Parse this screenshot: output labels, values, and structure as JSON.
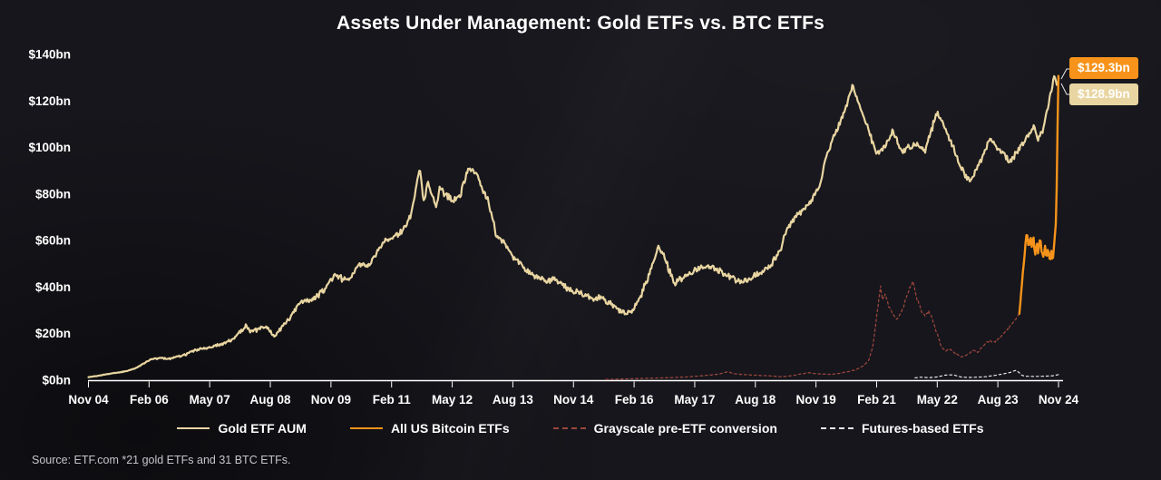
{
  "source": "Source: ETF.com *21 gold ETFs and 31 BTC ETFs.",
  "annotations": {
    "btc_badge": "$129.3bn",
    "gold_badge": "$128.9bn"
  },
  "colors": {
    "background": "#16161c",
    "gold": "#e9d5a1",
    "bitcoin": "#f7931a",
    "grayscale": "#9a453c",
    "futures": "#e8e8ea",
    "axis": "#ffffff",
    "text": "#ffffff"
  },
  "legend": {
    "items": [
      {
        "label": "Gold ETF AUM",
        "color_key": "gold",
        "style": "solid"
      },
      {
        "label": "All US Bitcoin ETFs",
        "color_key": "bitcoin",
        "style": "solid"
      },
      {
        "label": "Grayscale pre-ETF conversion",
        "color_key": "grayscale",
        "style": "dashed"
      },
      {
        "label": "Futures-based ETFs",
        "color_key": "futures",
        "style": "dashed"
      }
    ]
  },
  "chart_data": {
    "type": "line",
    "title": "Assets Under Management: Gold ETFs vs. BTC ETFs",
    "xlabel": "",
    "ylabel": "",
    "x_unit": "months since Nov 2004",
    "ylim": [
      0,
      140
    ],
    "grid": false,
    "legend_position": "bottom",
    "y_tick_format": "$bn",
    "y_ticks": [
      0,
      20,
      40,
      60,
      80,
      100,
      120,
      140
    ],
    "y_tick_labels": [
      "$0bn",
      "$20bn",
      "$40bn",
      "$60bn",
      "$80bn",
      "$100bn",
      "$120bn",
      "$140bn"
    ],
    "x_tick_months": [
      0,
      15,
      30,
      45,
      60,
      75,
      90,
      105,
      120,
      135,
      150,
      165,
      180,
      195,
      210,
      225,
      240
    ],
    "x_tick_labels": [
      "Nov 04",
      "Feb 06",
      "May 07",
      "Aug 08",
      "Nov 09",
      "Feb 11",
      "May 12",
      "Aug 13",
      "Nov 14",
      "Feb 16",
      "May 17",
      "Aug 18",
      "Nov 19",
      "Feb 21",
      "May 22",
      "Aug 23",
      "Nov 24"
    ],
    "series": [
      {
        "name": "Futures-based ETFs",
        "color_key": "futures",
        "style": "dashed",
        "width": 1.2,
        "jitter": 0.2,
        "end_value_bn": 2.4,
        "points": [
          [
            204.5,
            1.0
          ],
          [
            206,
            1.3
          ],
          [
            208,
            1.1
          ],
          [
            210,
            1.4
          ],
          [
            212,
            2.2
          ],
          [
            214,
            2.3
          ],
          [
            216,
            1.3
          ],
          [
            218,
            1.2
          ],
          [
            220,
            1.3
          ],
          [
            222,
            1.5
          ],
          [
            224,
            2.0
          ],
          [
            226,
            2.6
          ],
          [
            228,
            3.3
          ],
          [
            229.5,
            4.3
          ],
          [
            230.3,
            3.2
          ],
          [
            231,
            2.0
          ],
          [
            232,
            1.7
          ],
          [
            234,
            1.6
          ],
          [
            236,
            1.7
          ],
          [
            238,
            1.8
          ],
          [
            239,
            2.0
          ],
          [
            240,
            2.4
          ]
        ]
      },
      {
        "name": "Grayscale pre-ETF conversion",
        "color_key": "grayscale",
        "style": "dashed",
        "width": 1.3,
        "jitter": 0.9,
        "end_value_bn": 28.5,
        "points": [
          [
            128,
            0.3
          ],
          [
            132,
            0.5
          ],
          [
            136,
            0.7
          ],
          [
            140,
            0.9
          ],
          [
            144,
            1.1
          ],
          [
            148,
            1.4
          ],
          [
            152,
            1.9
          ],
          [
            156,
            2.6
          ],
          [
            158,
            3.6
          ],
          [
            160,
            2.7
          ],
          [
            164,
            2.2
          ],
          [
            168,
            1.9
          ],
          [
            172,
            1.5
          ],
          [
            174,
            1.9
          ],
          [
            178,
            3.2
          ],
          [
            180,
            2.8
          ],
          [
            184,
            2.5
          ],
          [
            186,
            3.0
          ],
          [
            188,
            3.7
          ],
          [
            190,
            4.6
          ],
          [
            192,
            6.5
          ],
          [
            193,
            8.5
          ],
          [
            194,
            14
          ],
          [
            195,
            27
          ],
          [
            196,
            40.5
          ],
          [
            196.5,
            34
          ],
          [
            197,
            37
          ],
          [
            198,
            32
          ],
          [
            199,
            28
          ],
          [
            200,
            26
          ],
          [
            201,
            29
          ],
          [
            202,
            33.5
          ],
          [
            203,
            38.5
          ],
          [
            204,
            42.5
          ],
          [
            204.5,
            38
          ],
          [
            205,
            35.5
          ],
          [
            206,
            30
          ],
          [
            207,
            27.5
          ],
          [
            208,
            29.5
          ],
          [
            209,
            25
          ],
          [
            210,
            20
          ],
          [
            211,
            14.5
          ],
          [
            212,
            12.5
          ],
          [
            213,
            13.5
          ],
          [
            214,
            12
          ],
          [
            215,
            11
          ],
          [
            216,
            10
          ],
          [
            217,
            10.5
          ],
          [
            218,
            11.5
          ],
          [
            219,
            13
          ],
          [
            220,
            12
          ],
          [
            221,
            14
          ],
          [
            222,
            16
          ],
          [
            223,
            17
          ],
          [
            224,
            16
          ],
          [
            225,
            17.5
          ],
          [
            226,
            19
          ],
          [
            227,
            21
          ],
          [
            228,
            23
          ],
          [
            229,
            25.5
          ],
          [
            230.3,
            28.5
          ]
        ]
      },
      {
        "name": "Gold ETF AUM",
        "color_key": "gold",
        "style": "solid",
        "width": 2.2,
        "jitter": 1.3,
        "end_value_bn": 128.9,
        "points": [
          [
            0,
            1.3
          ],
          [
            2,
            1.8
          ],
          [
            4,
            2.4
          ],
          [
            6,
            3.0
          ],
          [
            8,
            3.4
          ],
          [
            10,
            4.2
          ],
          [
            12,
            5.5
          ],
          [
            14,
            7.5
          ],
          [
            16,
            9.2
          ],
          [
            18,
            9.6
          ],
          [
            20,
            9.2
          ],
          [
            22,
            10
          ],
          [
            24,
            11
          ],
          [
            26,
            12.5
          ],
          [
            28,
            13.5
          ],
          [
            30,
            14.2
          ],
          [
            32,
            15
          ],
          [
            34,
            16
          ],
          [
            36,
            18
          ],
          [
            38,
            21.5
          ],
          [
            39,
            23.5
          ],
          [
            40,
            20.5
          ],
          [
            42,
            22
          ],
          [
            44,
            23
          ],
          [
            46,
            18.5
          ],
          [
            48,
            23
          ],
          [
            50,
            27
          ],
          [
            52,
            33
          ],
          [
            54,
            34
          ],
          [
            56,
            35
          ],
          [
            58,
            38
          ],
          [
            60,
            43
          ],
          [
            61,
            45
          ],
          [
            63,
            43.5
          ],
          [
            65,
            44.5
          ],
          [
            67,
            50
          ],
          [
            69,
            49
          ],
          [
            71,
            54
          ],
          [
            73,
            59
          ],
          [
            75,
            61
          ],
          [
            77,
            63
          ],
          [
            79,
            68
          ],
          [
            80,
            72
          ],
          [
            81,
            82
          ],
          [
            82,
            90.5
          ],
          [
            83,
            76
          ],
          [
            84,
            85
          ],
          [
            86,
            74.5
          ],
          [
            87,
            84
          ],
          [
            88,
            80
          ],
          [
            90,
            77.5
          ],
          [
            92,
            79.5
          ],
          [
            94,
            91
          ],
          [
            96,
            89
          ],
          [
            98,
            80
          ],
          [
            99,
            77
          ],
          [
            100,
            70
          ],
          [
            101,
            61.5
          ],
          [
            103,
            59
          ],
          [
            105,
            53.5
          ],
          [
            107,
            50
          ],
          [
            109,
            46.5
          ],
          [
            111,
            44.5
          ],
          [
            113,
            42.5
          ],
          [
            115,
            43.5
          ],
          [
            117,
            41.5
          ],
          [
            119,
            38.5
          ],
          [
            121,
            37.5
          ],
          [
            123,
            36.5
          ],
          [
            125,
            34.5
          ],
          [
            127,
            35.5
          ],
          [
            129,
            33
          ],
          [
            131,
            30.5
          ],
          [
            133,
            28.5
          ],
          [
            135,
            31
          ],
          [
            137,
            38
          ],
          [
            139,
            47
          ],
          [
            141,
            57
          ],
          [
            142,
            55
          ],
          [
            143,
            50.5
          ],
          [
            145,
            41.5
          ],
          [
            147,
            44
          ],
          [
            149,
            46
          ],
          [
            151,
            48
          ],
          [
            153,
            50
          ],
          [
            155,
            48
          ],
          [
            157,
            46
          ],
          [
            159,
            44
          ],
          [
            161,
            42
          ],
          [
            163,
            43.5
          ],
          [
            165,
            45
          ],
          [
            167,
            46.5
          ],
          [
            169,
            50
          ],
          [
            171,
            55
          ],
          [
            173,
            66
          ],
          [
            175,
            70
          ],
          [
            177,
            74
          ],
          [
            179,
            77.5
          ],
          [
            181,
            84
          ],
          [
            182,
            93
          ],
          [
            183,
            98
          ],
          [
            185,
            107
          ],
          [
            187,
            115
          ],
          [
            189,
            126.5
          ],
          [
            190,
            121
          ],
          [
            191,
            117
          ],
          [
            193,
            108
          ],
          [
            195,
            96.5
          ],
          [
            197,
            100
          ],
          [
            199,
            107
          ],
          [
            200,
            103
          ],
          [
            201,
            98.5
          ],
          [
            203,
            100
          ],
          [
            205,
            101.5
          ],
          [
            207,
            98.5
          ],
          [
            209,
            110
          ],
          [
            210,
            115
          ],
          [
            211,
            112
          ],
          [
            213,
            104
          ],
          [
            215,
            95
          ],
          [
            217,
            88
          ],
          [
            218,
            85.5
          ],
          [
            219,
            88
          ],
          [
            221,
            95
          ],
          [
            223,
            104
          ],
          [
            225,
            100
          ],
          [
            227,
            96
          ],
          [
            228,
            93
          ],
          [
            229,
            96.5
          ],
          [
            231,
            101
          ],
          [
            233,
            106
          ],
          [
            234,
            109
          ],
          [
            235,
            103.5
          ],
          [
            236,
            107
          ],
          [
            237,
            114
          ],
          [
            238,
            123
          ],
          [
            239,
            131
          ],
          [
            239.6,
            126.5
          ],
          [
            240,
            128.9
          ]
        ]
      },
      {
        "name": "All US Bitcoin ETFs",
        "color_key": "bitcoin",
        "style": "solid",
        "width": 2.4,
        "jitter": 1.2,
        "end_value_bn": 129.3,
        "points": [
          [
            230.3,
            28.5
          ],
          [
            230.7,
            36
          ],
          [
            231,
            43
          ],
          [
            231.4,
            50
          ],
          [
            231.8,
            58
          ],
          [
            232.2,
            65
          ],
          [
            232.6,
            56
          ],
          [
            233,
            62
          ],
          [
            233.4,
            57.5
          ],
          [
            233.8,
            61
          ],
          [
            234.2,
            53
          ],
          [
            234.6,
            60
          ],
          [
            235,
            54
          ],
          [
            235.4,
            62
          ],
          [
            235.8,
            56
          ],
          [
            236.2,
            51.5
          ],
          [
            236.6,
            58.5
          ],
          [
            237,
            52.5
          ],
          [
            237.4,
            57
          ],
          [
            237.8,
            51.5
          ],
          [
            238.2,
            55
          ],
          [
            238.6,
            52
          ],
          [
            239,
            60
          ],
          [
            239.3,
            66
          ],
          [
            239.5,
            78
          ],
          [
            239.65,
            95
          ],
          [
            239.8,
            112
          ],
          [
            239.9,
            126
          ],
          [
            239.95,
            133
          ],
          [
            240,
            129.3
          ]
        ]
      }
    ]
  }
}
